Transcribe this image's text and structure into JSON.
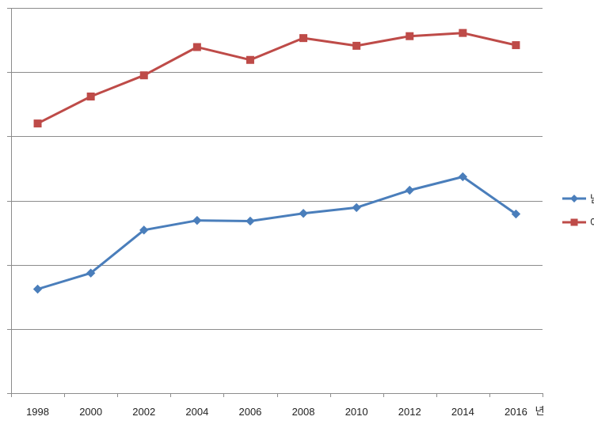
{
  "chart_data": {
    "type": "line",
    "title": "",
    "xlabel": "년",
    "ylabel": "",
    "categories": [
      "1998",
      "2000",
      "2002",
      "2004",
      "2006",
      "2008",
      "2010",
      "2012",
      "2014",
      "2016"
    ],
    "ylim": [
      0,
      60
    ],
    "y_tick_step": 10,
    "y_tick_labels_visible": false,
    "grid": "horizontal",
    "legend_position": "right",
    "series": [
      {
        "name": "남",
        "color": "#4a7ebb",
        "marker": "diamond",
        "values": [
          16.2,
          18.7,
          25.4,
          26.9,
          26.8,
          28.0,
          28.9,
          31.6,
          33.7,
          27.9
        ]
      },
      {
        "name": "여",
        "color": "#be4b48",
        "marker": "square",
        "values": [
          42.0,
          46.2,
          49.5,
          53.9,
          51.9,
          55.3,
          54.1,
          55.6,
          56.1,
          54.2
        ]
      }
    ]
  }
}
